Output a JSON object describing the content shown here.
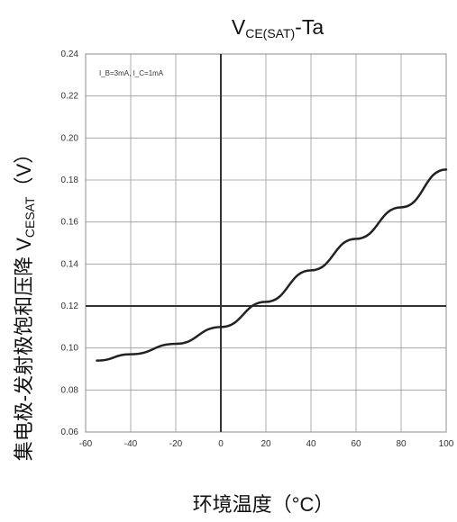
{
  "chart_data": {
    "type": "line",
    "title_main": "V",
    "title_sub": "CE(SAT)",
    "title_suffix": "-Ta",
    "xlabel": "环境温度（°C）",
    "ylabel_main": "集电极-发射极饱和压降 V",
    "ylabel_sub": "CESAT",
    "ylabel_suffix": "（V）",
    "annotation": "I_B=3mA, I_C=1mA",
    "xlim": [
      -60,
      100
    ],
    "ylim": [
      0.06,
      0.24
    ],
    "xticks": [
      -60,
      -40,
      -20,
      0,
      20,
      40,
      60,
      80,
      100
    ],
    "yticks": [
      0.06,
      0.08,
      0.1,
      0.12,
      0.14,
      0.16,
      0.18,
      0.2,
      0.22,
      0.24
    ],
    "xtick_labels": [
      "-60",
      "-40",
      "-20",
      "0",
      "20",
      "40",
      "60",
      "80",
      "100"
    ],
    "ytick_labels": [
      "0.06",
      "0.08",
      "0.10",
      "0.12",
      "0.14",
      "0.16",
      "0.18",
      "0.20",
      "0.22",
      "0.24"
    ],
    "grid": true,
    "reference_lines": {
      "vertical_x": 0,
      "horizontal_y": 0.12
    },
    "series": [
      {
        "x": [
          -55,
          -40,
          -20,
          0,
          20,
          40,
          60,
          80,
          100
        ],
        "y": [
          0.094,
          0.097,
          0.102,
          0.11,
          0.122,
          0.137,
          0.152,
          0.167,
          0.185
        ]
      }
    ],
    "colors": {
      "line": "#222222",
      "grid": "#999999",
      "frame": "#666666",
      "reference": "#333333"
    }
  }
}
